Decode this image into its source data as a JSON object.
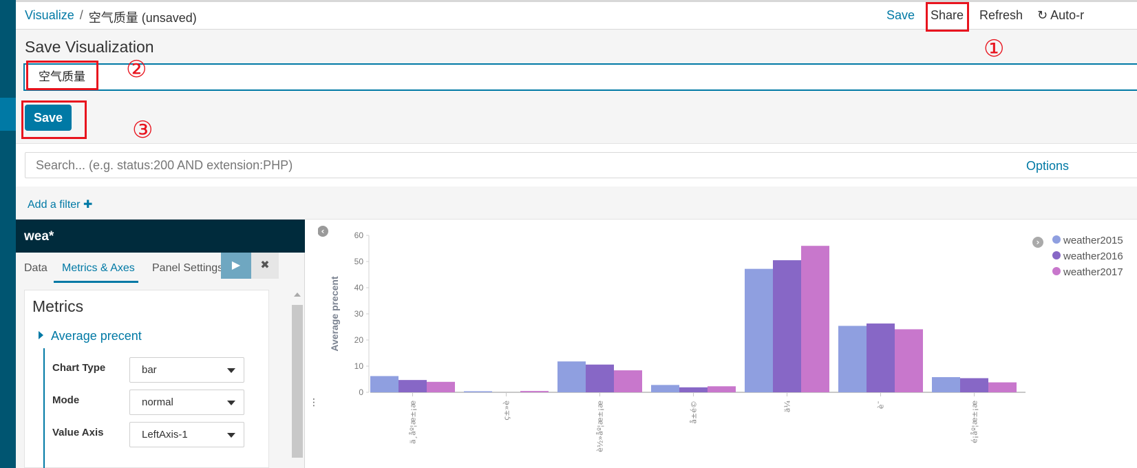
{
  "breadcrumb": {
    "root": "Visualize",
    "separator": "/",
    "current": "空气质量 (unsaved)"
  },
  "top_menu": {
    "save": "Save",
    "share": "Share",
    "refresh": "Refresh",
    "auto_refresh": "Auto-r"
  },
  "save_panel": {
    "heading": "Save Visualization",
    "title_value": "空气质量",
    "save_button": "Save"
  },
  "annotations": {
    "step1": "①",
    "step2": "②",
    "step3": "③",
    "highlight_color": "#e8141e"
  },
  "search": {
    "placeholder": "Search... (e.g. status:200 AND extension:PHP)",
    "options": "Options"
  },
  "filter": {
    "add_filter": "Add a filter",
    "plus": "✚"
  },
  "sidebar": {
    "index_pattern": "wea*",
    "tabs": [
      "Data",
      "Metrics & Axes",
      "Panel Settings"
    ],
    "active_tab": "Metrics & Axes",
    "run_icon": "play-icon",
    "discard_icon": "close-icon",
    "metrics_heading": "Metrics",
    "metric_label": "Average precent",
    "fields": [
      {
        "label": "Chart Type",
        "value": "bar"
      },
      {
        "label": "Mode",
        "value": "normal"
      },
      {
        "label": "Value Axis",
        "value": "LeftAxis-1"
      }
    ]
  },
  "colors": {
    "accent": "#0079a5",
    "sidebar_dark": "#005571",
    "series": [
      "#8f9fe0",
      "#8767c6",
      "#c877cc"
    ]
  },
  "chart_data": {
    "type": "bar",
    "ylabel": "Average precent",
    "ylim": [
      0,
      60
    ],
    "yticks": [
      0,
      10,
      20,
      30,
      40,
      50,
      60
    ],
    "categories": [
      "ä¸­åº¦æ±¡æ",
      "ç±»è",
      "è½»åº¦æ±¡æ",
      "å±é©",
      "ä¼",
      "è¯",
      "é¡åº¦æ±¡æ"
    ],
    "series": [
      {
        "name": "weather2015",
        "values": [
          6.2,
          0.4,
          11.8,
          2.8,
          47.2,
          25.4,
          5.8
        ]
      },
      {
        "name": "weather2016",
        "values": [
          4.7,
          0,
          10.6,
          1.9,
          50.5,
          26.3,
          5.4
        ]
      },
      {
        "name": "weather2017",
        "values": [
          4.0,
          0.5,
          8.4,
          2.3,
          56.0,
          24.1,
          3.8
        ]
      }
    ],
    "legend_position": "top-right"
  }
}
